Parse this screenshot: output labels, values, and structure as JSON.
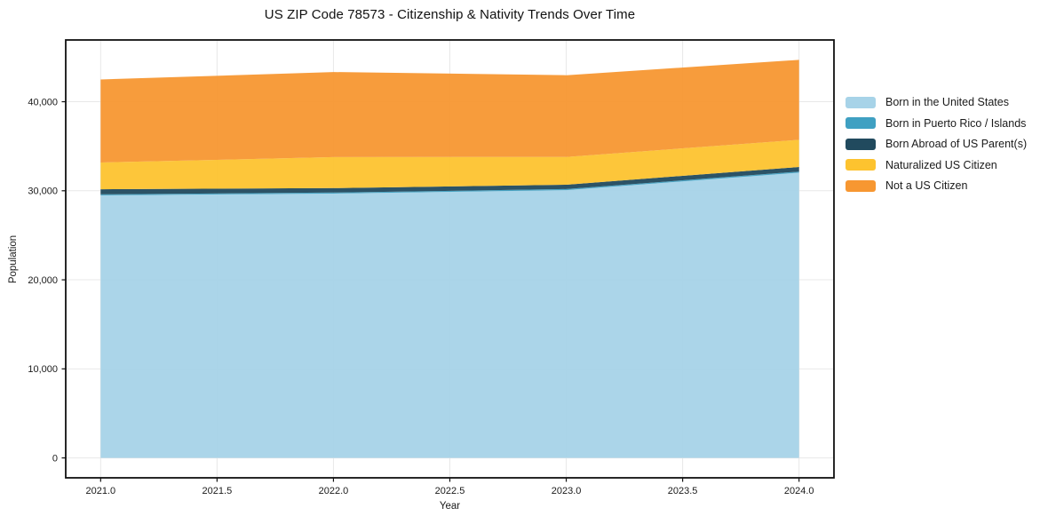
{
  "chart_data": {
    "type": "area",
    "stacked": true,
    "title": "US ZIP Code 78573 - Citizenship & Nativity Trends Over Time",
    "xlabel": "Year",
    "ylabel": "Population",
    "x": [
      2021,
      2022,
      2023,
      2024
    ],
    "series": [
      {
        "name": "Born in the United States",
        "color": "#a7d3e8",
        "values": [
          29480,
          29680,
          30070,
          32030
        ]
      },
      {
        "name": "Born in Puerto Rico / Islands",
        "color": "#3fa0c2",
        "values": [
          120,
          120,
          120,
          120
        ]
      },
      {
        "name": "Born Abroad of US Parent(s)",
        "color": "#214a5e",
        "values": [
          570,
          500,
          490,
          520
        ]
      },
      {
        "name": "Naturalized US Citizen",
        "color": "#fdc32f",
        "values": [
          3000,
          3480,
          3120,
          3050
        ]
      },
      {
        "name": "Not a US Citizen",
        "color": "#f79731",
        "values": [
          9330,
          9550,
          9180,
          8980
        ]
      }
    ],
    "totals": [
      42500,
      43330,
      42980,
      44700
    ],
    "xlim": [
      2020.85,
      2024.15
    ],
    "ylim": [
      -2235,
      46935
    ],
    "xticks": [
      2021.0,
      2021.5,
      2022.0,
      2022.5,
      2023.0,
      2023.5,
      2024.0
    ],
    "xtick_labels": [
      "2021.0",
      "2021.5",
      "2022.0",
      "2022.5",
      "2023.0",
      "2023.5",
      "2024.0"
    ],
    "yticks": [
      0,
      10000,
      20000,
      30000,
      40000
    ],
    "ytick_labels": [
      "0",
      "10,000",
      "20,000",
      "30,000",
      "40,000"
    ],
    "grid": true,
    "legend_position": "right-outside",
    "style": {
      "grid_color": "#e8e8e8",
      "spine_color": "#111111",
      "tick_color": "#111111",
      "text_color": "#1a1a1a",
      "plot_background": "#ffffff"
    }
  }
}
